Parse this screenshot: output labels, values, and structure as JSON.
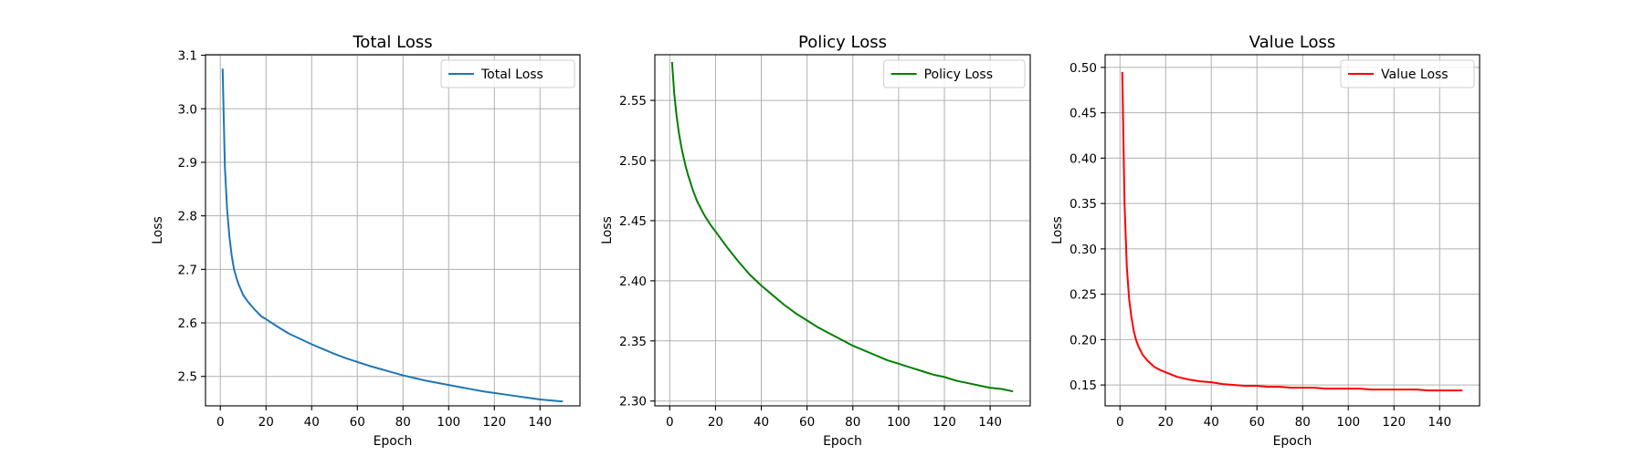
{
  "chart_data": [
    {
      "type": "line",
      "title": "Total Loss",
      "xlabel": "Epoch",
      "ylabel": "Loss",
      "xlim": [
        -6.5,
        157.5
      ],
      "ylim": [
        2.445,
        3.101
      ],
      "xticks": [
        0,
        20,
        40,
        60,
        80,
        100,
        120,
        140
      ],
      "yticks": [
        2.5,
        2.6,
        2.7,
        2.8,
        2.9,
        3.0,
        3.1
      ],
      "ytick_labels": [
        "2.5",
        "2.6",
        "2.7",
        "2.8",
        "2.9",
        "3.0",
        "3.1"
      ],
      "grid": true,
      "legend_position": "upper-right",
      "series": [
        {
          "name": "Total Loss",
          "color": "#1f77b4",
          "x": [
            1,
            2,
            3,
            4,
            5,
            6,
            7,
            8,
            10,
            12,
            15,
            18,
            20,
            25,
            30,
            35,
            40,
            45,
            50,
            55,
            60,
            65,
            70,
            75,
            80,
            85,
            90,
            95,
            100,
            105,
            110,
            115,
            120,
            125,
            130,
            135,
            140,
            145,
            150
          ],
          "y": [
            3.075,
            2.89,
            2.81,
            2.76,
            2.725,
            2.7,
            2.685,
            2.672,
            2.652,
            2.64,
            2.625,
            2.612,
            2.607,
            2.593,
            2.58,
            2.57,
            2.56,
            2.551,
            2.542,
            2.534,
            2.527,
            2.52,
            2.514,
            2.508,
            2.502,
            2.497,
            2.492,
            2.488,
            2.484,
            2.48,
            2.476,
            2.472,
            2.469,
            2.466,
            2.463,
            2.46,
            2.457,
            2.455,
            2.453
          ]
        }
      ]
    },
    {
      "type": "line",
      "title": "Policy Loss",
      "xlabel": "Epoch",
      "ylabel": "Loss",
      "xlim": [
        -6.5,
        157.5
      ],
      "ylim": [
        2.296,
        2.588
      ],
      "xticks": [
        0,
        20,
        40,
        60,
        80,
        100,
        120,
        140
      ],
      "yticks": [
        2.3,
        2.35,
        2.4,
        2.45,
        2.5,
        2.55
      ],
      "ytick_labels": [
        "2.30",
        "2.35",
        "2.40",
        "2.45",
        "2.50",
        "2.55"
      ],
      "grid": true,
      "legend_position": "upper-right",
      "series": [
        {
          "name": "Policy Loss",
          "color": "#008000",
          "x": [
            1,
            2,
            3,
            4,
            5,
            6,
            7,
            8,
            10,
            12,
            15,
            18,
            20,
            25,
            30,
            35,
            40,
            45,
            50,
            55,
            60,
            65,
            70,
            75,
            80,
            85,
            90,
            95,
            100,
            105,
            110,
            115,
            120,
            125,
            130,
            135,
            140,
            145,
            150
          ],
          "y": [
            2.582,
            2.555,
            2.537,
            2.523,
            2.512,
            2.503,
            2.495,
            2.488,
            2.476,
            2.466,
            2.455,
            2.446,
            2.441,
            2.428,
            2.416,
            2.405,
            2.396,
            2.388,
            2.38,
            2.373,
            2.367,
            2.361,
            2.356,
            2.351,
            2.346,
            2.342,
            2.338,
            2.334,
            2.331,
            2.328,
            2.325,
            2.322,
            2.32,
            2.317,
            2.315,
            2.313,
            2.311,
            2.31,
            2.308
          ]
        }
      ]
    },
    {
      "type": "line",
      "title": "Value Loss",
      "xlabel": "Epoch",
      "ylabel": "Loss",
      "xlim": [
        -6.5,
        157.5
      ],
      "ylim": [
        0.127,
        0.514
      ],
      "xticks": [
        0,
        20,
        40,
        60,
        80,
        100,
        120,
        140
      ],
      "yticks": [
        0.15,
        0.2,
        0.25,
        0.3,
        0.35,
        0.4,
        0.45,
        0.5
      ],
      "ytick_labels": [
        "0.15",
        "0.20",
        "0.25",
        "0.30",
        "0.35",
        "0.40",
        "0.45",
        "0.50"
      ],
      "grid": true,
      "legend_position": "upper-right",
      "series": [
        {
          "name": "Value Loss",
          "color": "#ff0000",
          "x": [
            1,
            2,
            3,
            4,
            5,
            6,
            7,
            8,
            10,
            12,
            15,
            18,
            20,
            25,
            30,
            35,
            40,
            45,
            50,
            55,
            60,
            65,
            70,
            75,
            80,
            85,
            90,
            95,
            100,
            105,
            110,
            115,
            120,
            125,
            130,
            135,
            140,
            145,
            150
          ],
          "y": [
            0.495,
            0.35,
            0.28,
            0.245,
            0.225,
            0.21,
            0.2,
            0.193,
            0.183,
            0.177,
            0.17,
            0.166,
            0.164,
            0.159,
            0.156,
            0.154,
            0.153,
            0.151,
            0.15,
            0.149,
            0.149,
            0.148,
            0.148,
            0.147,
            0.147,
            0.147,
            0.146,
            0.146,
            0.146,
            0.146,
            0.145,
            0.145,
            0.145,
            0.145,
            0.145,
            0.144,
            0.144,
            0.144,
            0.144
          ]
        }
      ]
    }
  ]
}
